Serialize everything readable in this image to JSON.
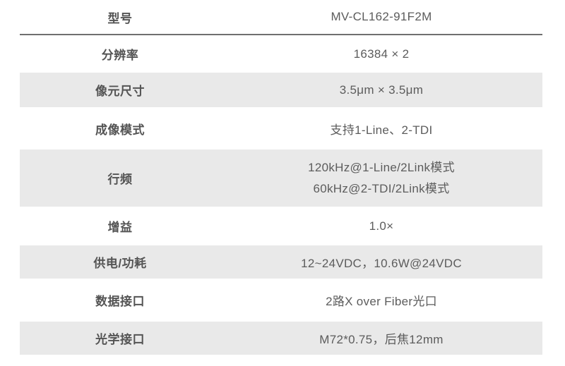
{
  "table": {
    "rows": [
      {
        "label": "型号",
        "value": "MV-CL162-91F2M"
      },
      {
        "label": "分辨率",
        "value": "16384 × 2"
      },
      {
        "label": "像元尺寸",
        "value": "3.5μm × 3.5μm"
      },
      {
        "label": "成像模式",
        "value": "支持1-Line、2-TDI"
      },
      {
        "label": "行频",
        "value_lines": [
          "120kHz@1-Line/2Link模式",
          "60kHz@2-TDI/2Link模式"
        ]
      },
      {
        "label": "增益",
        "value": "1.0×"
      },
      {
        "label": "供电/功耗",
        "value": "12~24VDC，10.6W@24VDC"
      },
      {
        "label": "数据接口",
        "value": "2路X over Fiber光口"
      },
      {
        "label": "光学接口",
        "value": "M72*0.75，后焦12mm"
      }
    ],
    "colors": {
      "alt_row_bg": "#e9e9e9",
      "label_text": "#545454",
      "value_text": "#5c5c5c",
      "divider": "#6f6f6f",
      "page_bg": "#ffffff"
    }
  }
}
